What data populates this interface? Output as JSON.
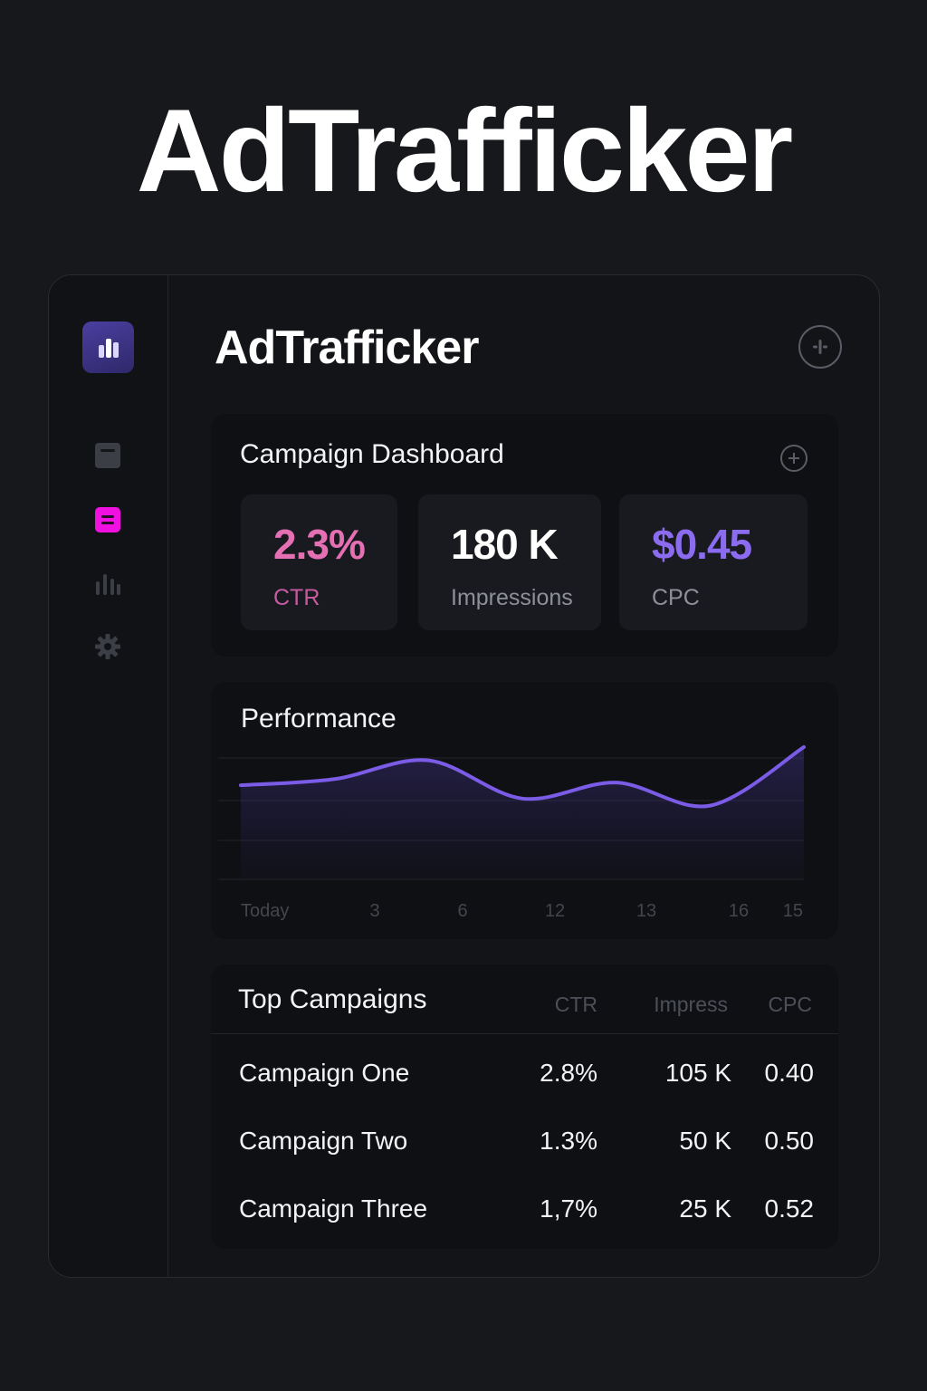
{
  "hero": {
    "title": "AdTrafficker"
  },
  "header": {
    "title": "AdTrafficker"
  },
  "sidebar": {
    "items": [
      {
        "icon": "calendar-icon",
        "active": false
      },
      {
        "icon": "list-icon",
        "active": true
      },
      {
        "icon": "bar-chart-icon",
        "active": false
      },
      {
        "icon": "gear-icon",
        "active": false
      }
    ]
  },
  "dashboard": {
    "title": "Campaign Dashboard",
    "stats": [
      {
        "value": "2.3%",
        "label": "CTR",
        "color": "#e46fb3"
      },
      {
        "value": "180 K",
        "label": "Impressions",
        "color": "#ffffff"
      },
      {
        "value": "$0.45",
        "label": "CPC",
        "color": "#8b6cf0"
      }
    ]
  },
  "performance": {
    "title": "Performance",
    "x_labels": [
      "Today",
      "3",
      "6",
      "12",
      "13",
      "16",
      "15"
    ]
  },
  "chart_data": {
    "type": "area",
    "title": "Performance",
    "categories": [
      "Today",
      "3",
      "6",
      "12",
      "13",
      "16",
      "15"
    ],
    "series": [
      {
        "values": [
          0.55,
          0.62,
          0.83,
          0.4,
          0.58,
          0.32,
          0.98
        ]
      }
    ],
    "line_color": "#7b5ce6",
    "grid": true,
    "legend": "none"
  },
  "top_campaigns": {
    "title": "Top Campaigns",
    "columns": [
      "CTR",
      "Impress",
      "CPC"
    ],
    "rows": [
      {
        "name": "Campaign One",
        "ctr": "2.8%",
        "impressions": "105 K",
        "cpc": "0.40"
      },
      {
        "name": "Campaign Two",
        "ctr": "1.3%",
        "impressions": "50 K",
        "cpc": "0.50"
      },
      {
        "name": "Campaign Three",
        "ctr": "1,7%",
        "impressions": "25 K",
        "cpc": "0.52"
      }
    ]
  },
  "colors": {
    "accent": "#7b5ce6",
    "active_nav": "#f010e0",
    "ctr_pink": "#e46fb3"
  }
}
